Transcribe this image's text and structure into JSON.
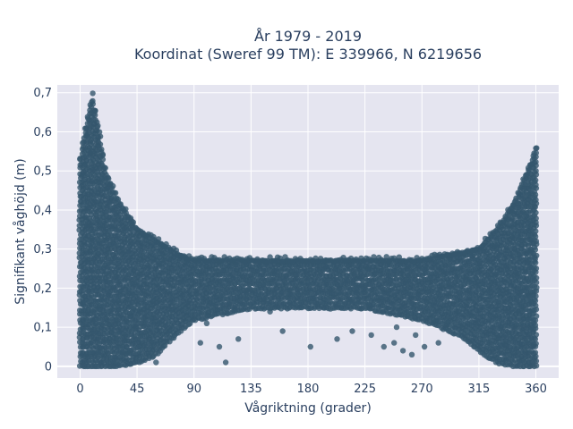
{
  "chart_data": {
    "type": "scatter",
    "title": [
      "År 1979 - 2019",
      "Koordinat (Sweref 99 TM): E 339966, N 6219656"
    ],
    "xlabel": "Vågriktning (grader)",
    "ylabel": "Signifikant våghöjd (m)",
    "xlim": [
      -18,
      378
    ],
    "ylim": [
      -0.03,
      0.72
    ],
    "x_ticks": [
      0,
      45,
      90,
      135,
      180,
      225,
      270,
      315,
      360
    ],
    "x_tick_labels": [
      "0",
      "45",
      "90",
      "135",
      "180",
      "225",
      "270",
      "315",
      "360"
    ],
    "y_ticks": [
      0,
      0.1,
      0.2,
      0.3,
      0.4,
      0.5,
      0.6,
      0.7
    ],
    "y_tick_labels": [
      "0",
      "0,1",
      "0,2",
      "0,3",
      "0,4",
      "0,5",
      "0,6",
      "0,7"
    ],
    "grid": true,
    "marker_color": "#34566d",
    "plot_bg": "#e5e5f0",
    "envelope": {
      "x": [
        0,
        5,
        10,
        15,
        20,
        30,
        45,
        60,
        75,
        90,
        135,
        180,
        225,
        270,
        300,
        315,
        330,
        345,
        355,
        360
      ],
      "upper": [
        0.53,
        0.62,
        0.69,
        0.6,
        0.5,
        0.42,
        0.35,
        0.32,
        0.29,
        0.27,
        0.27,
        0.27,
        0.27,
        0.27,
        0.29,
        0.3,
        0.35,
        0.43,
        0.51,
        0.56
      ],
      "lower": [
        0.0,
        0.0,
        0.0,
        0.0,
        0.0,
        0.0,
        0.01,
        0.03,
        0.08,
        0.12,
        0.15,
        0.15,
        0.15,
        0.12,
        0.08,
        0.04,
        0.01,
        0.0,
        0.0,
        0.0
      ]
    },
    "outliers": [
      {
        "x": 60,
        "y": 0.01
      },
      {
        "x": 115,
        "y": 0.01
      },
      {
        "x": 125,
        "y": 0.07
      },
      {
        "x": 110,
        "y": 0.05
      },
      {
        "x": 160,
        "y": 0.09
      },
      {
        "x": 182,
        "y": 0.05
      },
      {
        "x": 203,
        "y": 0.07
      },
      {
        "x": 215,
        "y": 0.09
      },
      {
        "x": 230,
        "y": 0.08
      },
      {
        "x": 240,
        "y": 0.05
      },
      {
        "x": 248,
        "y": 0.06
      },
      {
        "x": 255,
        "y": 0.04
      },
      {
        "x": 262,
        "y": 0.03
      },
      {
        "x": 272,
        "y": 0.05
      },
      {
        "x": 283,
        "y": 0.06
      },
      {
        "x": 95,
        "y": 0.06
      },
      {
        "x": 100,
        "y": 0.11
      },
      {
        "x": 150,
        "y": 0.14
      },
      {
        "x": 250,
        "y": 0.1
      },
      {
        "x": 265,
        "y": 0.08
      }
    ]
  }
}
